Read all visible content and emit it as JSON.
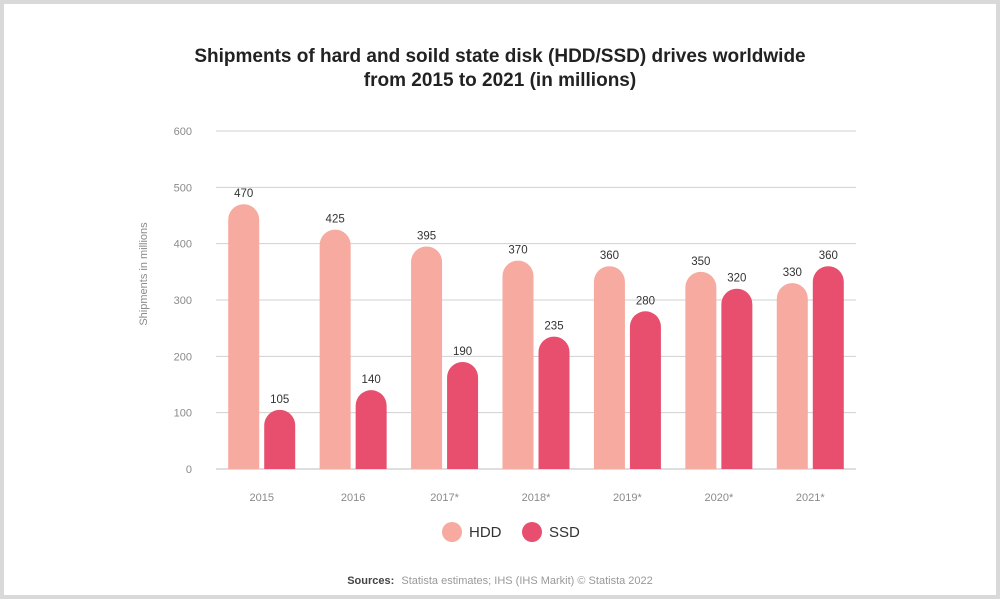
{
  "chart_data": {
    "type": "bar",
    "title_lines": [
      "Shipments of hard and soild state disk (HDD/SSD) drives worldwide",
      "from 2015 to 2021 (in millions)"
    ],
    "xlabel": "",
    "ylabel": "Shipments in millions",
    "ylim": [
      0,
      600
    ],
    "yticks": [
      0,
      100,
      200,
      300,
      400,
      500,
      600
    ],
    "grid": true,
    "legend_position": "bottom-center",
    "categories": [
      "2015",
      "2016",
      "2017*",
      "2018*",
      "2019*",
      "2020*",
      "2021*"
    ],
    "series": [
      {
        "name": "HDD",
        "color": "#f7aaa0",
        "values": [
          470,
          425,
          395,
          370,
          360,
          350,
          330
        ]
      },
      {
        "name": "SSD",
        "color": "#e84f6e",
        "values": [
          105,
          140,
          190,
          235,
          280,
          320,
          360
        ]
      }
    ],
    "source_label": "Sources:",
    "source_text": "Statista estimates; IHS (IHS Markit) © Statista 2022"
  }
}
